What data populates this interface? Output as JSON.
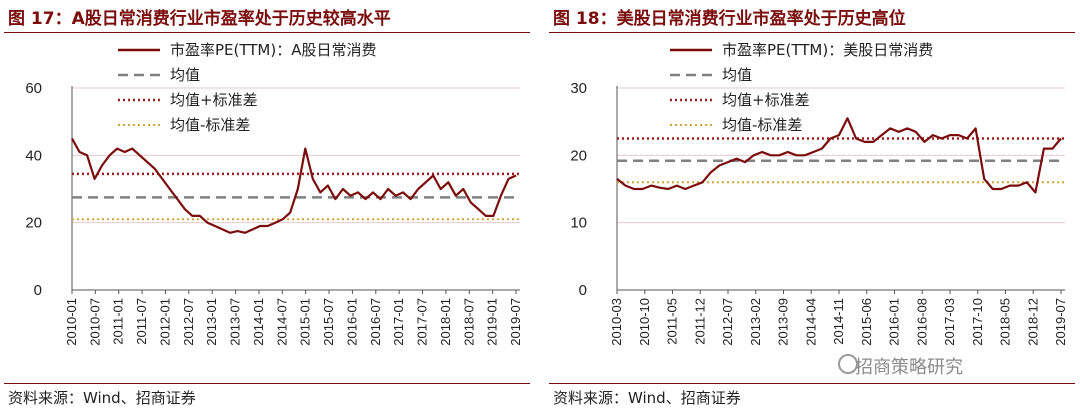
{
  "left": {
    "title": "图 17：A股日常消费行业市盈率处于历史较高水平",
    "source": "资料来源：Wind、招商证券"
  },
  "right": {
    "title": "图 18：美股日常消费行业市盈率处于历史高位",
    "source": "资料来源：Wind、招商证券"
  },
  "watermark": "招商策略研究",
  "colors": {
    "title": "#7b0c0c",
    "series": "#7b0c0c",
    "mean": "#808080",
    "plus_std": "#9b1b1b",
    "minus_std": "#d4a43a",
    "grid": "#e6c9cf"
  },
  "chart_data": [
    {
      "type": "line",
      "ylim": [
        0,
        60
      ],
      "yticks": [
        0,
        20,
        40,
        60
      ],
      "grid": true,
      "legend_position": "top",
      "x": [
        "2010-01",
        "2010-07",
        "2011-01",
        "2011-07",
        "2012-01",
        "2012-07",
        "2013-01",
        "2013-07",
        "2014-01",
        "2014-07",
        "2015-01",
        "2015-07",
        "2016-01",
        "2016-07",
        "2017-01",
        "2017-07",
        "2018-01",
        "2018-07",
        "2019-01",
        "2019-07"
      ],
      "series": [
        {
          "name": "市盈率PE(TTM)：A股日常消费",
          "values": [
            [
              0,
              45
            ],
            [
              1,
              41
            ],
            [
              2,
              40
            ],
            [
              3,
              33
            ],
            [
              4,
              37
            ],
            [
              5,
              40
            ],
            [
              6,
              42
            ],
            [
              7,
              41
            ],
            [
              8,
              42
            ],
            [
              9,
              40
            ],
            [
              10,
              38
            ],
            [
              11,
              36
            ],
            [
              12,
              33
            ],
            [
              13,
              30
            ],
            [
              14,
              27
            ],
            [
              15,
              24
            ],
            [
              16,
              22
            ],
            [
              17,
              22
            ],
            [
              18,
              20
            ],
            [
              19,
              19
            ],
            [
              20,
              18
            ],
            [
              21,
              17
            ],
            [
              22,
              17.5
            ],
            [
              23,
              17
            ],
            [
              24,
              18
            ],
            [
              25,
              19
            ],
            [
              26,
              19
            ],
            [
              27,
              20
            ],
            [
              28,
              21
            ],
            [
              29,
              23
            ],
            [
              30,
              30
            ],
            [
              31,
              42
            ],
            [
              32,
              33
            ],
            [
              33,
              29
            ],
            [
              34,
              31
            ],
            [
              35,
              27
            ],
            [
              36,
              30
            ],
            [
              37,
              28
            ],
            [
              38,
              29
            ],
            [
              39,
              27
            ],
            [
              40,
              29
            ],
            [
              41,
              27
            ],
            [
              42,
              30
            ],
            [
              43,
              28
            ],
            [
              44,
              29
            ],
            [
              45,
              27
            ],
            [
              46,
              30
            ],
            [
              47,
              32
            ],
            [
              48,
              34
            ],
            [
              49,
              30
            ],
            [
              50,
              32
            ],
            [
              51,
              28
            ],
            [
              52,
              30
            ],
            [
              53,
              26
            ],
            [
              54,
              24
            ],
            [
              55,
              22
            ],
            [
              56,
              22
            ],
            [
              57,
              28
            ],
            [
              58,
              33
            ],
            [
              59,
              34
            ]
          ]
        }
      ],
      "references": [
        {
          "name": "均值",
          "value": 27.5,
          "style": "dashed"
        },
        {
          "name": "均值+标准差",
          "value": 34.5,
          "style": "dotted"
        },
        {
          "name": "均值-标准差",
          "value": 21,
          "style": "dotted"
        }
      ]
    },
    {
      "type": "line",
      "ylim": [
        0,
        30
      ],
      "yticks": [
        0,
        10,
        20,
        30
      ],
      "grid": true,
      "legend_position": "top",
      "x": [
        "2010-03",
        "2010-10",
        "2011-05",
        "2011-12",
        "2012-07",
        "2013-02",
        "2013-09",
        "2014-04",
        "2014-11",
        "2015-06",
        "2016-01",
        "2016-08",
        "2017-03",
        "2017-10",
        "2018-05",
        "2018-12",
        "2019-07"
      ],
      "series": [
        {
          "name": "市盈率PE(TTM)：美股日常消费",
          "values": [
            [
              0,
              16.5
            ],
            [
              1,
              15.5
            ],
            [
              2,
              15
            ],
            [
              3,
              15
            ],
            [
              4,
              15.5
            ],
            [
              5,
              15.2
            ],
            [
              6,
              15
            ],
            [
              7,
              15.5
            ],
            [
              8,
              15
            ],
            [
              9,
              15.5
            ],
            [
              10,
              16
            ],
            [
              11,
              17.5
            ],
            [
              12,
              18.5
            ],
            [
              13,
              19
            ],
            [
              14,
              19.5
            ],
            [
              15,
              19
            ],
            [
              16,
              20
            ],
            [
              17,
              20.5
            ],
            [
              18,
              20
            ],
            [
              19,
              20
            ],
            [
              20,
              20.5
            ],
            [
              21,
              20
            ],
            [
              22,
              20
            ],
            [
              23,
              20.5
            ],
            [
              24,
              21
            ],
            [
              25,
              22.5
            ],
            [
              26,
              23
            ],
            [
              27,
              25.5
            ],
            [
              28,
              22.5
            ],
            [
              29,
              22
            ],
            [
              30,
              22
            ],
            [
              31,
              23
            ],
            [
              32,
              24
            ],
            [
              33,
              23.5
            ],
            [
              34,
              24
            ],
            [
              35,
              23.5
            ],
            [
              36,
              22
            ],
            [
              37,
              23
            ],
            [
              38,
              22.5
            ],
            [
              39,
              23
            ],
            [
              40,
              23
            ],
            [
              41,
              22.5
            ],
            [
              42,
              24
            ],
            [
              43,
              16.5
            ],
            [
              44,
              15
            ],
            [
              45,
              15
            ],
            [
              46,
              15.5
            ],
            [
              47,
              15.5
            ],
            [
              48,
              16
            ],
            [
              49,
              14.5
            ],
            [
              50,
              21
            ],
            [
              51,
              21
            ],
            [
              52,
              22.5
            ]
          ]
        }
      ],
      "references": [
        {
          "name": "均值",
          "value": 19.2,
          "style": "dashed"
        },
        {
          "name": "均值+标准差",
          "value": 22.5,
          "style": "dotted"
        },
        {
          "name": "均值-标准差",
          "value": 16,
          "style": "dotted"
        }
      ]
    }
  ]
}
